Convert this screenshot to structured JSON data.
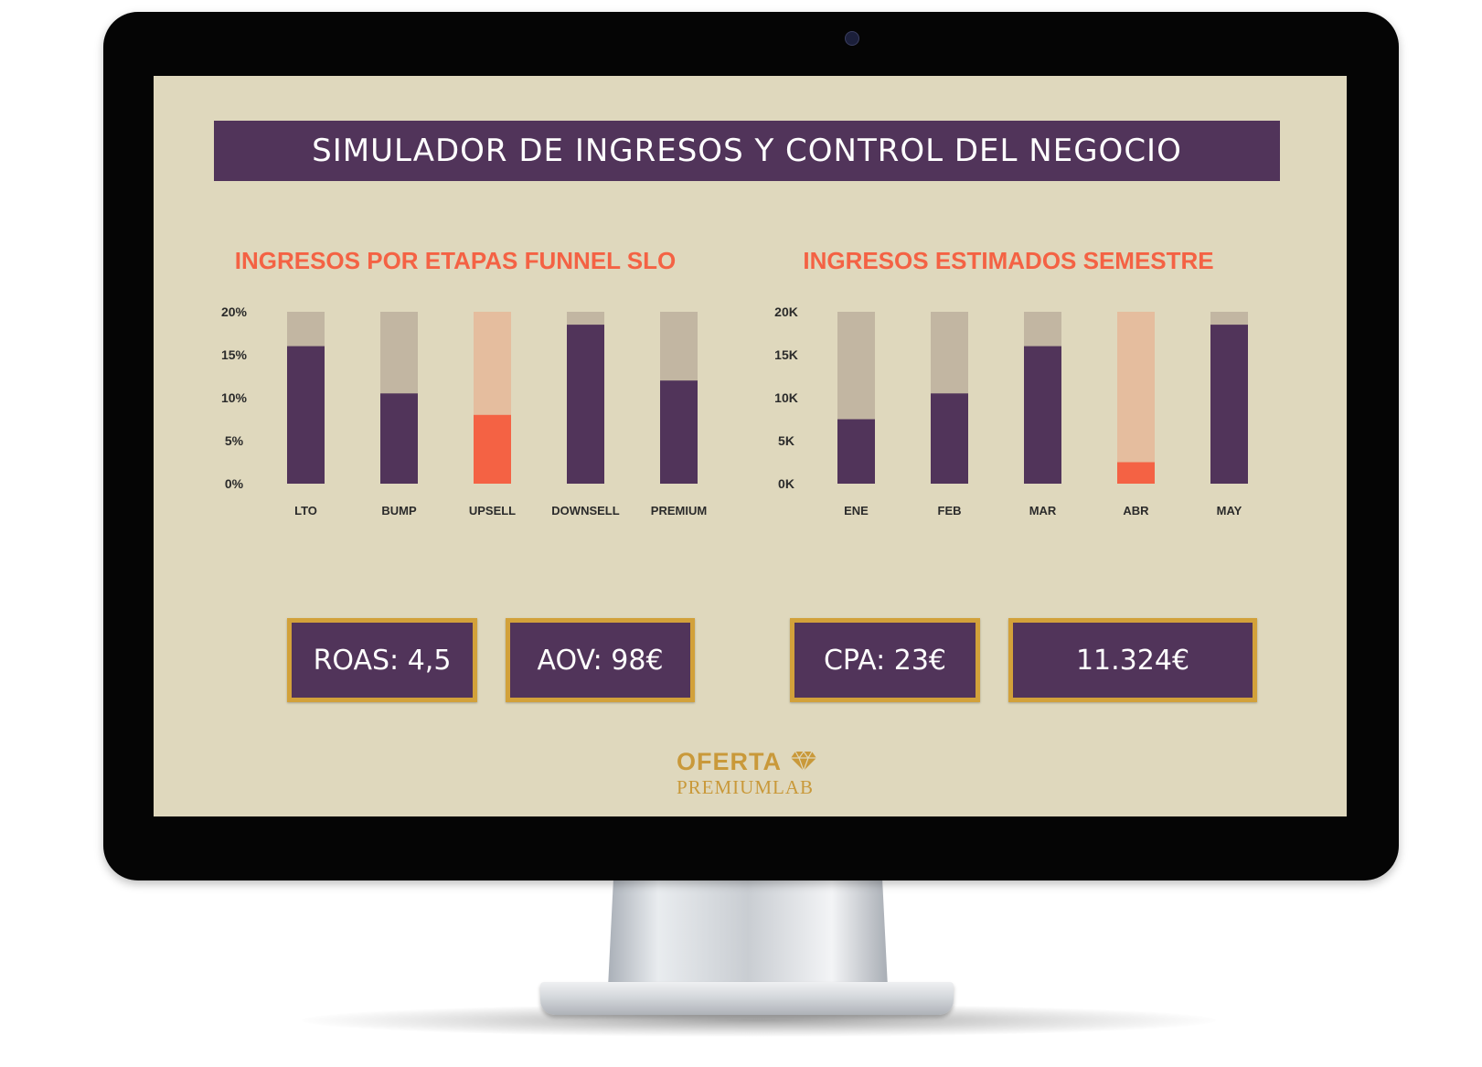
{
  "page": {
    "title": "SIMULADOR DE INGRESOS Y CONTROL DEL NEGOCIO"
  },
  "colors": {
    "screen_bg": "#dfd8bd",
    "purple": "#51345a",
    "orange": "#f46244",
    "bar_track": "#c2b6a2",
    "bar_track_highlight": "#e5bd9e",
    "gold": "#d2a13a"
  },
  "chart_data": [
    {
      "type": "bar",
      "title": "INGRESOS POR ETAPAS FUNNEL SLO",
      "categories": [
        "LTO",
        "BUMP",
        "UPSELL",
        "DOWNSELL",
        "PREMIUM"
      ],
      "values": [
        16,
        10.5,
        8,
        18.5,
        12
      ],
      "highlight_index": 2,
      "ylim": [
        0,
        20
      ],
      "yticks": [
        "0%",
        "5%",
        "10%",
        "15%",
        "20%"
      ],
      "grid": false,
      "legend": "none"
    },
    {
      "type": "bar",
      "title": "INGRESOS ESTIMADOS SEMESTRE",
      "categories": [
        "ENE",
        "FEB",
        "MAR",
        "ABR",
        "MAY"
      ],
      "values": [
        7500,
        10500,
        16000,
        2500,
        18500
      ],
      "highlight_index": 3,
      "ylim": [
        0,
        20000
      ],
      "yticks": [
        "0K",
        "5K",
        "10K",
        "15K",
        "20K"
      ],
      "grid": false,
      "legend": "none"
    }
  ],
  "kpis": [
    {
      "label": "ROAS: 4,5"
    },
    {
      "label": "AOV: 98€"
    },
    {
      "label": "CPA: 23€"
    },
    {
      "label": "11.324€"
    }
  ],
  "logo": {
    "top": "OFERTA",
    "bottom": "PREMIUMLAB",
    "icon": "diamond-icon"
  }
}
